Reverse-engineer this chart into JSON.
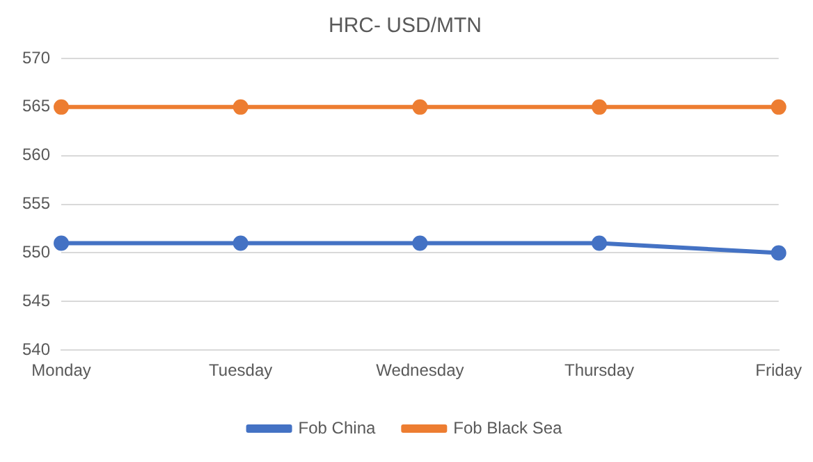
{
  "chart_data": {
    "type": "line",
    "title": "HRC- USD/MTN",
    "categories": [
      "Monday",
      "Tuesday",
      "Wednesday",
      "Thursday",
      "Friday"
    ],
    "series": [
      {
        "name": "Fob China",
        "color": "#4472c4",
        "values": [
          551,
          551,
          551,
          551,
          550
        ]
      },
      {
        "name": "Fob Black Sea",
        "color": "#ed7d31",
        "values": [
          565,
          565,
          565,
          565,
          565
        ]
      }
    ],
    "ylim": [
      540,
      570
    ],
    "yticks": [
      540,
      545,
      550,
      555,
      560,
      565,
      570
    ],
    "grid": "y",
    "legend": "bottom",
    "marker": "circle",
    "line_style": "solid"
  }
}
